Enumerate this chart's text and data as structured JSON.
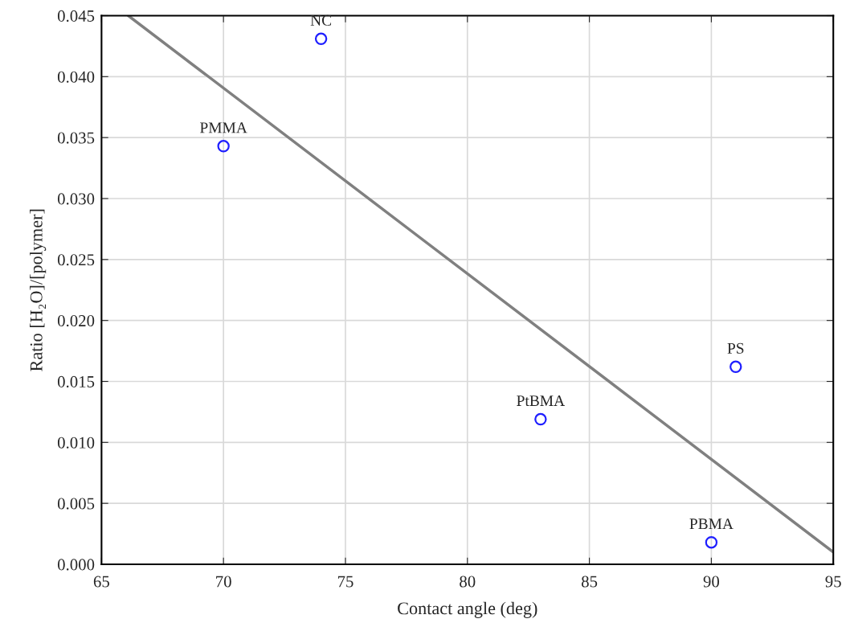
{
  "chart_data": {
    "type": "scatter",
    "xlabel": "Contact angle (deg)",
    "ylabel": "Ratio [H₂O]/[polymer]",
    "xlim": [
      65,
      95
    ],
    "xticks": [
      65,
      70,
      75,
      80,
      85,
      90,
      95
    ],
    "ylim": [
      0,
      0.045
    ],
    "yticks": [
      {
        "value": 0,
        "label": "0.000"
      },
      {
        "value": 0.005,
        "label": "0.005"
      },
      {
        "value": 0.01,
        "label": "0.010"
      },
      {
        "value": 0.015,
        "label": "0.015"
      },
      {
        "value": 0.02,
        "label": "0.020"
      },
      {
        "value": 0.025,
        "label": "0.025"
      },
      {
        "value": 0.03,
        "label": "0.030"
      },
      {
        "value": 0.035,
        "label": "0.035"
      },
      {
        "value": 0.04,
        "label": "0.040"
      },
      {
        "value": 0.045,
        "label": "0.045"
      }
    ],
    "grid": true,
    "legend": false,
    "series": [
      {
        "color": "#1f1fff",
        "marker": "circle",
        "x": [
          74,
          70,
          91,
          83,
          90
        ],
        "values": [
          0.0431,
          0.0343,
          0.0162,
          0.0119,
          0.0018
        ]
      },
      {
        "type": "line",
        "color": "#808080",
        "marker": "none",
        "line_style": "solid",
        "x": [
          66.1,
          95
        ],
        "values": [
          0.045,
          0.001
        ]
      }
    ],
    "annotations": [
      {
        "text": "NC",
        "x": 74,
        "y": 0.0431
      },
      {
        "text": "PMMA",
        "x": 70,
        "y": 0.0343
      },
      {
        "text": "PS",
        "x": 91,
        "y": 0.0162
      },
      {
        "text": "PtBMA",
        "x": 83,
        "y": 0.0119
      },
      {
        "text": "PBMA",
        "x": 90,
        "y": 0.0018
      }
    ]
  }
}
